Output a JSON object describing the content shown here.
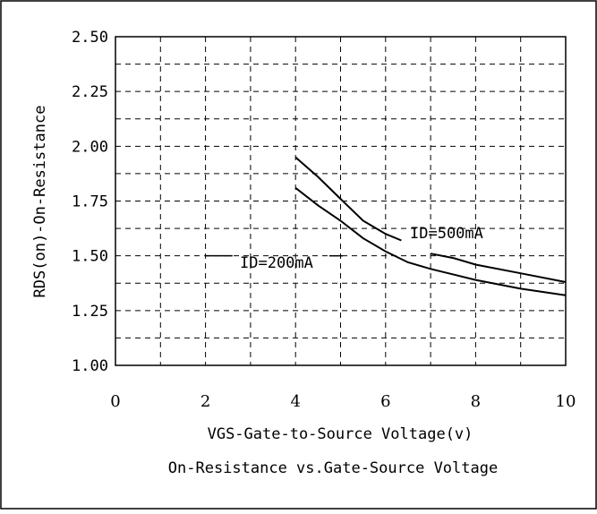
{
  "chart_data": {
    "type": "line",
    "title": "On-Resistance vs.Gate-Source Voltage",
    "xlabel": "VGS-Gate-to-Source Voltage(v)",
    "ylabel": "RDS(on)-On-Resistance",
    "xlim": [
      0,
      10
    ],
    "ylim": [
      1.0,
      2.5
    ],
    "x_ticks": [
      "0",
      "2",
      "4",
      "6",
      "8",
      "10"
    ],
    "y_ticks": [
      "1.00",
      "1.25",
      "1.50",
      "1.75",
      "2.00",
      "2.25",
      "2.50"
    ],
    "grid": "dashed, x every 1, y every 0.125",
    "series": [
      {
        "name": "ID=500mA",
        "points": [
          [
            4.0,
            1.95
          ],
          [
            4.5,
            1.86
          ],
          [
            5.0,
            1.76
          ],
          [
            5.5,
            1.66
          ],
          [
            6.0,
            1.6
          ],
          [
            6.35,
            1.57
          ],
          [
            7.0,
            1.51
          ],
          [
            7.5,
            1.49
          ],
          [
            8.0,
            1.46
          ],
          [
            9.0,
            1.42
          ],
          [
            10.0,
            1.38
          ]
        ],
        "gap_after_x": 6.35
      },
      {
        "name": "ID=200mA",
        "points": [
          [
            4.0,
            1.81
          ],
          [
            4.5,
            1.73
          ],
          [
            5.0,
            1.66
          ],
          [
            5.5,
            1.58
          ],
          [
            6.0,
            1.52
          ],
          [
            6.5,
            1.47
          ],
          [
            7.0,
            1.44
          ],
          [
            8.0,
            1.39
          ],
          [
            9.0,
            1.35
          ],
          [
            10.0,
            1.32
          ]
        ]
      }
    ]
  }
}
